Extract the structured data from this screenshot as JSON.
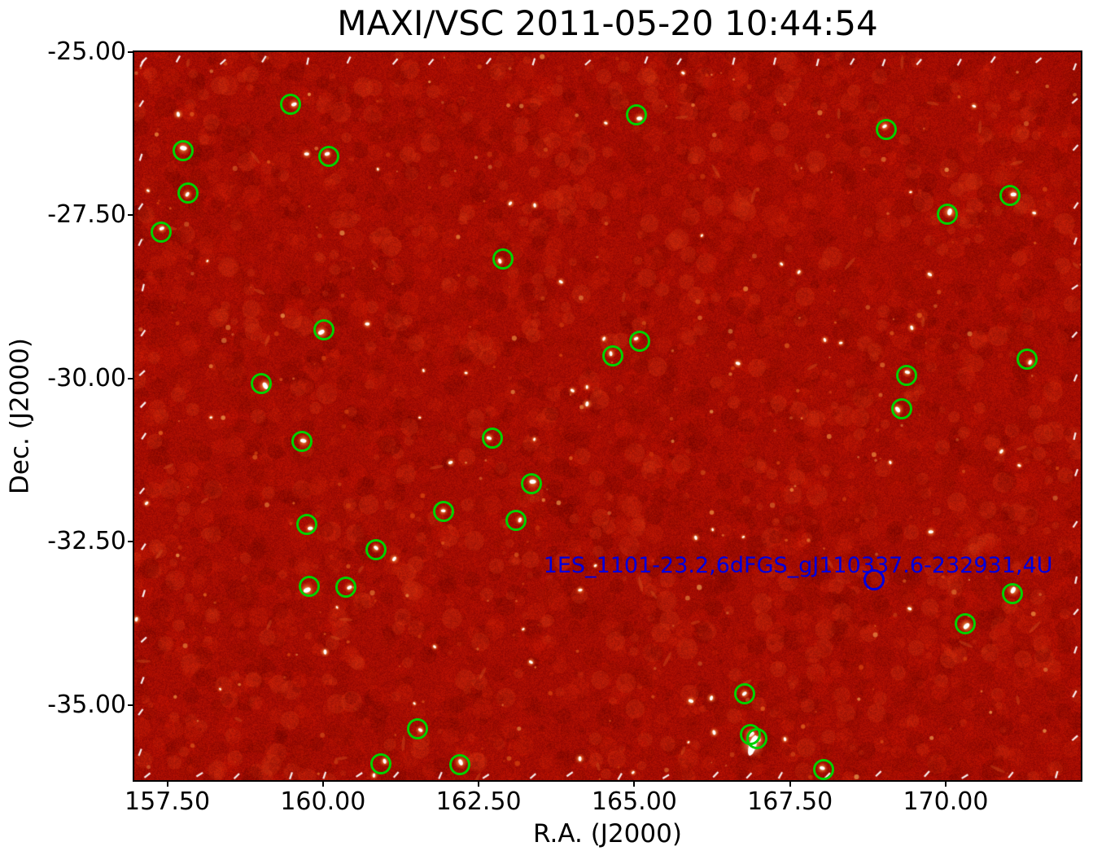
{
  "figure": {
    "title": "MAXI/VSC 2011-05-20 10:44:54"
  },
  "chart_data": {
    "type": "scatter",
    "title": "MAXI/VSC 2011-05-20 10:44:54",
    "xlabel": "R.A. (J2000)",
    "ylabel": "Dec. (J2000)",
    "x_tick_labels": [
      "157.50",
      "160.00",
      "162.50",
      "165.00",
      "167.50",
      "170.00"
    ],
    "x_tick_values": [
      157.5,
      160.0,
      162.5,
      165.0,
      167.5,
      170.0
    ],
    "y_tick_labels": [
      "-25.00",
      "-27.50",
      "-30.00",
      "-32.50",
      "-35.00"
    ],
    "y_tick_values": [
      -25.0,
      -27.5,
      -30.0,
      -32.5,
      -35.0
    ],
    "x_range": [
      156.97,
      172.17
    ],
    "y_range": [
      -36.15,
      -25.0
    ],
    "grid": false,
    "image_colormap": "red-hot-xray-intensity",
    "style": {
      "background_base": "#a30c02",
      "detected_circle_color": "#00cf00",
      "labeled_circle_color": "#0000dd",
      "annotation_text_color": "#0000dd",
      "axis_text_color": "#000000",
      "edge_dash_color": "#ffffff"
    },
    "detected_sources": [
      {
        "ra": 159.48,
        "dec": -25.8
      },
      {
        "ra": 160.1,
        "dec": -26.6
      },
      {
        "ra": 157.75,
        "dec": -26.51
      },
      {
        "ra": 157.83,
        "dec": -27.16
      },
      {
        "ra": 157.4,
        "dec": -27.76
      },
      {
        "ra": 165.03,
        "dec": -25.96
      },
      {
        "ra": 169.05,
        "dec": -26.18
      },
      {
        "ra": 171.03,
        "dec": -27.19
      },
      {
        "ra": 170.03,
        "dec": -27.48
      },
      {
        "ra": 162.89,
        "dec": -28.17
      },
      {
        "ra": 160.01,
        "dec": -29.25
      },
      {
        "ra": 165.09,
        "dec": -29.43
      },
      {
        "ra": 164.65,
        "dec": -29.65
      },
      {
        "ra": 171.31,
        "dec": -29.7
      },
      {
        "ra": 169.37,
        "dec": -29.95
      },
      {
        "ra": 159.01,
        "dec": -30.07
      },
      {
        "ra": 169.29,
        "dec": -30.46
      },
      {
        "ra": 159.66,
        "dec": -30.96
      },
      {
        "ra": 162.72,
        "dec": -30.91
      },
      {
        "ra": 163.35,
        "dec": -31.61
      },
      {
        "ra": 161.93,
        "dec": -32.03
      },
      {
        "ra": 163.1,
        "dec": -32.17
      },
      {
        "ra": 159.74,
        "dec": -32.24
      },
      {
        "ra": 160.85,
        "dec": -32.62
      },
      {
        "ra": 159.78,
        "dec": -33.18
      },
      {
        "ra": 160.37,
        "dec": -33.2
      },
      {
        "ra": 171.07,
        "dec": -33.3
      },
      {
        "ra": 170.31,
        "dec": -33.75
      },
      {
        "ra": 166.77,
        "dec": -34.83
      },
      {
        "ra": 166.86,
        "dec": -35.45
      },
      {
        "ra": 166.97,
        "dec": -35.51
      },
      {
        "ra": 161.52,
        "dec": -35.36
      },
      {
        "ra": 160.93,
        "dec": -35.9
      },
      {
        "ra": 162.2,
        "dec": -35.91
      },
      {
        "ra": 168.04,
        "dec": -35.99
      }
    ],
    "labeled_source": {
      "label": "1ES_1101-23.2,6dFGS_gJ110337.6-232931,4U",
      "ra": 168.85,
      "dec": -33.08,
      "label_ra": 163.54,
      "label_dec": -32.87
    }
  }
}
